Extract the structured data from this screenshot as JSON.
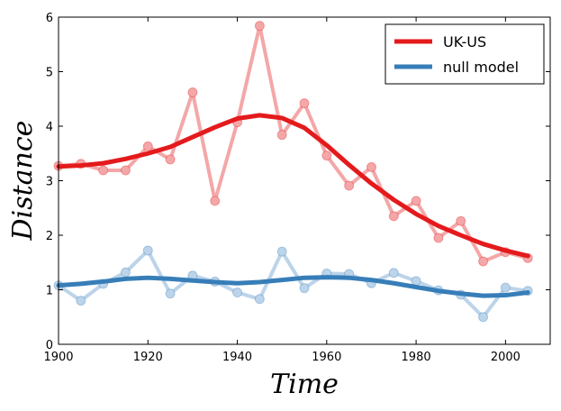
{
  "chart_data": {
    "type": "line",
    "title": "",
    "xlabel": "Time",
    "ylabel": "Distance",
    "xlim": [
      1900,
      2010
    ],
    "ylim": [
      0,
      6
    ],
    "xticks": [
      1900,
      1920,
      1940,
      1960,
      1980,
      2000
    ],
    "yticks": [
      0,
      1,
      2,
      3,
      4,
      5,
      6
    ],
    "grid": false,
    "legend_position": "top-right",
    "series": [
      {
        "name": "UK-US",
        "color": "#e41a1c",
        "raw_color": "#f4a7a8",
        "x": [
          1900,
          1905,
          1910,
          1915,
          1920,
          1925,
          1930,
          1935,
          1940,
          1945,
          1950,
          1955,
          1960,
          1965,
          1970,
          1975,
          1980,
          1985,
          1990,
          1995,
          2000,
          2005
        ],
        "raw": [
          3.27,
          3.31,
          3.19,
          3.19,
          3.63,
          3.39,
          4.62,
          2.63,
          4.07,
          5.84,
          3.84,
          4.42,
          3.46,
          2.91,
          3.25,
          2.35,
          2.63,
          1.95,
          2.26,
          1.52,
          1.69,
          1.58
        ],
        "smoothed": [
          3.26,
          3.28,
          3.32,
          3.4,
          3.5,
          3.62,
          3.8,
          3.98,
          4.14,
          4.2,
          4.15,
          3.97,
          3.65,
          3.29,
          2.95,
          2.65,
          2.39,
          2.17,
          2.0,
          1.84,
          1.72,
          1.62
        ]
      },
      {
        "name": "null model",
        "color": "#377eb8",
        "raw_color": "#bcd4ea",
        "x": [
          1900,
          1905,
          1910,
          1915,
          1920,
          1925,
          1930,
          1935,
          1940,
          1945,
          1950,
          1955,
          1960,
          1965,
          1970,
          1975,
          1980,
          1985,
          1990,
          1995,
          2000,
          2005
        ],
        "raw": [
          1.08,
          0.8,
          1.11,
          1.32,
          1.72,
          0.93,
          1.26,
          1.15,
          0.95,
          0.83,
          1.7,
          1.03,
          1.3,
          1.29,
          1.12,
          1.31,
          1.16,
          0.99,
          0.91,
          0.5,
          1.04,
          0.98
        ],
        "smoothed": [
          1.08,
          1.11,
          1.15,
          1.2,
          1.22,
          1.2,
          1.17,
          1.14,
          1.12,
          1.14,
          1.18,
          1.22,
          1.23,
          1.22,
          1.18,
          1.12,
          1.05,
          0.98,
          0.93,
          0.89,
          0.9,
          0.95
        ]
      }
    ]
  }
}
